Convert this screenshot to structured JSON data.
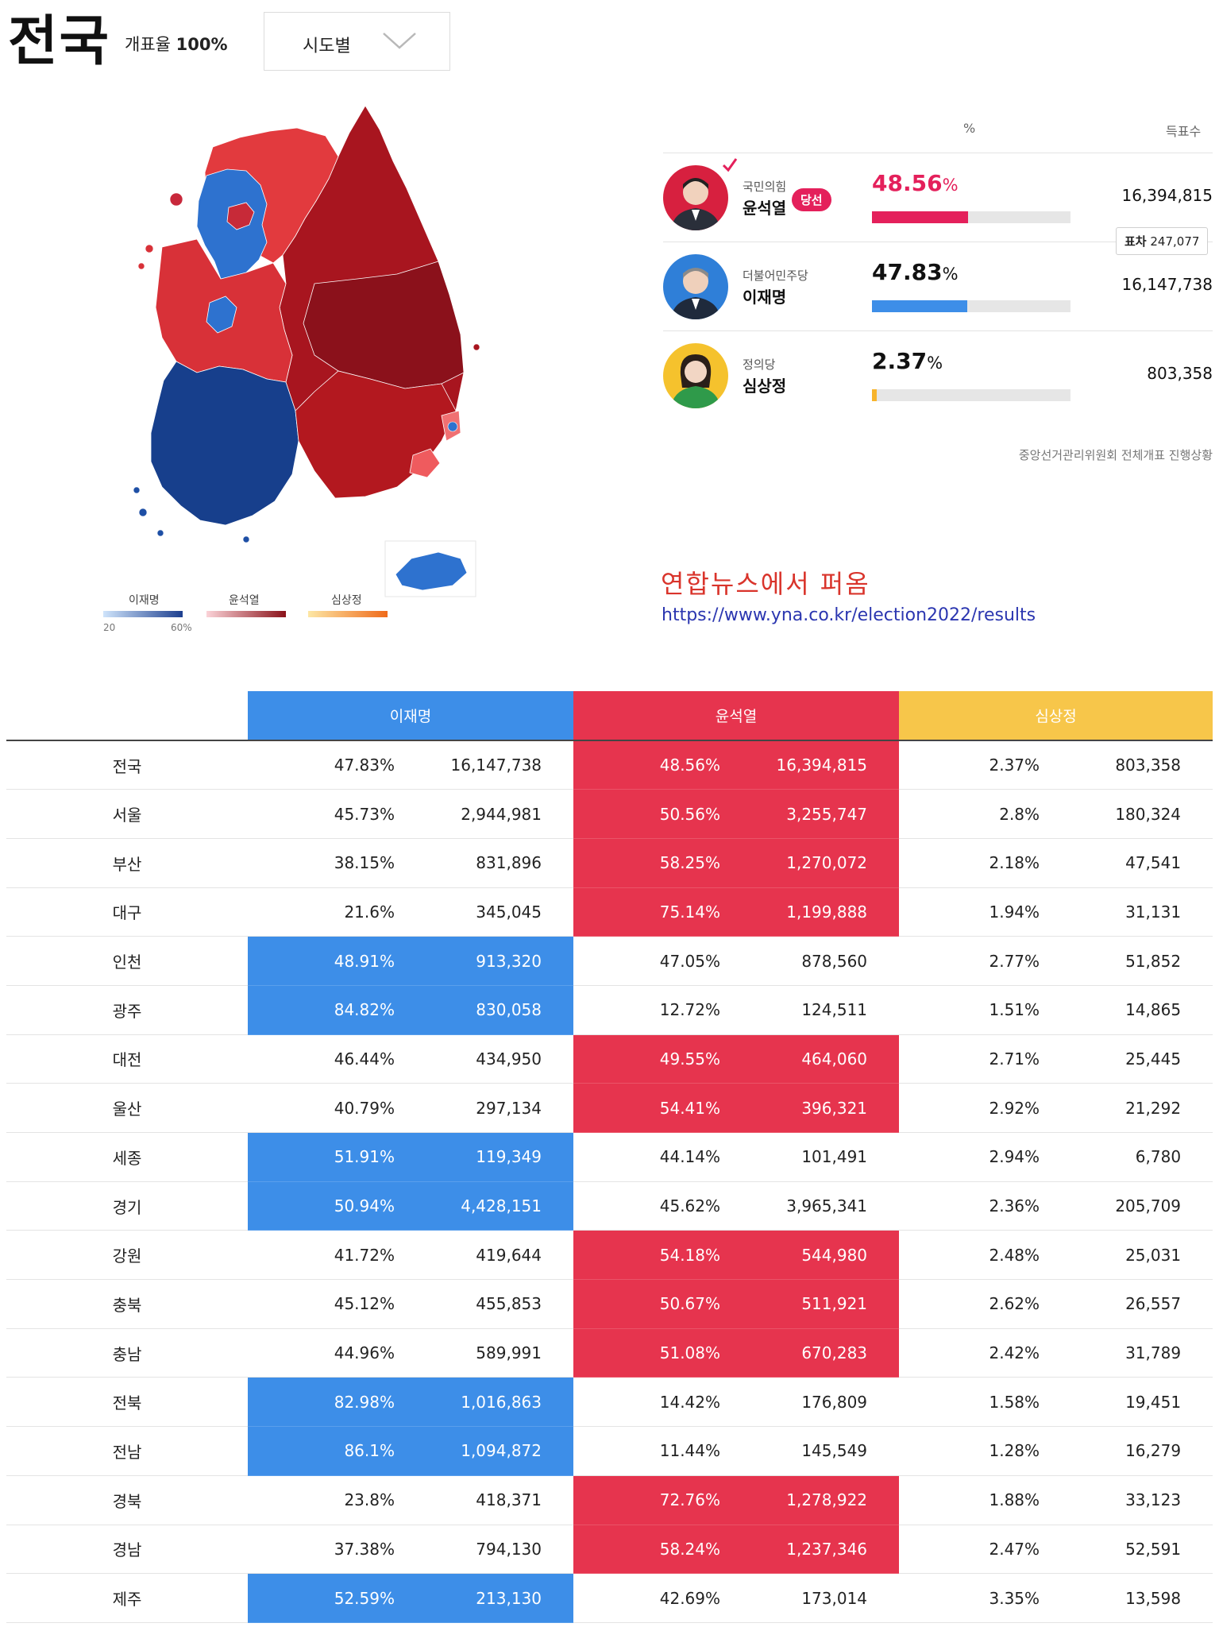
{
  "header": {
    "title": "전국",
    "rate_label": "개표율",
    "rate_value": "100%",
    "selector_label": "시도별"
  },
  "legend": {
    "items": [
      {
        "name": "이재명",
        "gradient": [
          "#cfe4fb",
          "#1d3f8f"
        ]
      },
      {
        "name": "윤석열",
        "gradient": [
          "#fbd3d8",
          "#8a1219"
        ]
      },
      {
        "name": "심상정",
        "gradient": [
          "#fde7a5",
          "#ef6a1a"
        ]
      }
    ],
    "min": "20",
    "max": "60%"
  },
  "results": {
    "col_pct": "%",
    "col_votes": "득표수",
    "candidates": [
      {
        "party": "국민의힘",
        "name": "윤석열",
        "pct": "48.56",
        "pct_unit": "%",
        "share": 48.56,
        "votes": "16,394,815",
        "badge": "당선",
        "color": "#e4205b",
        "winner": true
      },
      {
        "party": "더불어민주당",
        "name": "이재명",
        "pct": "47.83",
        "pct_unit": "%",
        "share": 47.83,
        "votes": "16,147,738",
        "color": "#3d8ee8",
        "winner": false
      },
      {
        "party": "정의당",
        "name": "심상정",
        "pct": "2.37",
        "pct_unit": "%",
        "share": 2.37,
        "votes": "803,358",
        "color": "#f7b42c",
        "winner": false
      }
    ],
    "margin_label": "표차",
    "margin_value": "247,077",
    "source": "중앙선거관리위원회 전체개표 진행상황"
  },
  "credit": {
    "text": "연합뉴스에서 퍼옴",
    "url": "https://www.yna.co.kr/election2022/results"
  },
  "table": {
    "headers": [
      "이재명",
      "윤석열",
      "심상정"
    ],
    "rows": [
      {
        "region": "전국",
        "lee_pct": "47.83%",
        "lee_votes": "16,147,738",
        "yoon_pct": "48.56%",
        "yoon_votes": "16,394,815",
        "sim_pct": "2.37%",
        "sim_votes": "803,358",
        "winner": "yoon"
      },
      {
        "region": "서울",
        "lee_pct": "45.73%",
        "lee_votes": "2,944,981",
        "yoon_pct": "50.56%",
        "yoon_votes": "3,255,747",
        "sim_pct": "2.8%",
        "sim_votes": "180,324",
        "winner": "yoon"
      },
      {
        "region": "부산",
        "lee_pct": "38.15%",
        "lee_votes": "831,896",
        "yoon_pct": "58.25%",
        "yoon_votes": "1,270,072",
        "sim_pct": "2.18%",
        "sim_votes": "47,541",
        "winner": "yoon"
      },
      {
        "region": "대구",
        "lee_pct": "21.6%",
        "lee_votes": "345,045",
        "yoon_pct": "75.14%",
        "yoon_votes": "1,199,888",
        "sim_pct": "1.94%",
        "sim_votes": "31,131",
        "winner": "yoon"
      },
      {
        "region": "인천",
        "lee_pct": "48.91%",
        "lee_votes": "913,320",
        "yoon_pct": "47.05%",
        "yoon_votes": "878,560",
        "sim_pct": "2.77%",
        "sim_votes": "51,852",
        "winner": "lee"
      },
      {
        "region": "광주",
        "lee_pct": "84.82%",
        "lee_votes": "830,058",
        "yoon_pct": "12.72%",
        "yoon_votes": "124,511",
        "sim_pct": "1.51%",
        "sim_votes": "14,865",
        "winner": "lee"
      },
      {
        "region": "대전",
        "lee_pct": "46.44%",
        "lee_votes": "434,950",
        "yoon_pct": "49.55%",
        "yoon_votes": "464,060",
        "sim_pct": "2.71%",
        "sim_votes": "25,445",
        "winner": "yoon"
      },
      {
        "region": "울산",
        "lee_pct": "40.79%",
        "lee_votes": "297,134",
        "yoon_pct": "54.41%",
        "yoon_votes": "396,321",
        "sim_pct": "2.92%",
        "sim_votes": "21,292",
        "winner": "yoon"
      },
      {
        "region": "세종",
        "lee_pct": "51.91%",
        "lee_votes": "119,349",
        "yoon_pct": "44.14%",
        "yoon_votes": "101,491",
        "sim_pct": "2.94%",
        "sim_votes": "6,780",
        "winner": "lee"
      },
      {
        "region": "경기",
        "lee_pct": "50.94%",
        "lee_votes": "4,428,151",
        "yoon_pct": "45.62%",
        "yoon_votes": "3,965,341",
        "sim_pct": "2.36%",
        "sim_votes": "205,709",
        "winner": "lee"
      },
      {
        "region": "강원",
        "lee_pct": "41.72%",
        "lee_votes": "419,644",
        "yoon_pct": "54.18%",
        "yoon_votes": "544,980",
        "sim_pct": "2.48%",
        "sim_votes": "25,031",
        "winner": "yoon"
      },
      {
        "region": "충북",
        "lee_pct": "45.12%",
        "lee_votes": "455,853",
        "yoon_pct": "50.67%",
        "yoon_votes": "511,921",
        "sim_pct": "2.62%",
        "sim_votes": "26,557",
        "winner": "yoon"
      },
      {
        "region": "충남",
        "lee_pct": "44.96%",
        "lee_votes": "589,991",
        "yoon_pct": "51.08%",
        "yoon_votes": "670,283",
        "sim_pct": "2.42%",
        "sim_votes": "31,789",
        "winner": "yoon"
      },
      {
        "region": "전북",
        "lee_pct": "82.98%",
        "lee_votes": "1,016,863",
        "yoon_pct": "14.42%",
        "yoon_votes": "176,809",
        "sim_pct": "1.58%",
        "sim_votes": "19,451",
        "winner": "lee"
      },
      {
        "region": "전남",
        "lee_pct": "86.1%",
        "lee_votes": "1,094,872",
        "yoon_pct": "11.44%",
        "yoon_votes": "145,549",
        "sim_pct": "1.28%",
        "sim_votes": "16,279",
        "winner": "lee"
      },
      {
        "region": "경북",
        "lee_pct": "23.8%",
        "lee_votes": "418,371",
        "yoon_pct": "72.76%",
        "yoon_votes": "1,278,922",
        "sim_pct": "1.88%",
        "sim_votes": "33,123",
        "winner": "yoon"
      },
      {
        "region": "경남",
        "lee_pct": "37.38%",
        "lee_votes": "794,130",
        "yoon_pct": "58.24%",
        "yoon_votes": "1,237,346",
        "sim_pct": "2.47%",
        "sim_votes": "52,591",
        "winner": "yoon"
      },
      {
        "region": "제주",
        "lee_pct": "52.59%",
        "lee_votes": "213,130",
        "yoon_pct": "42.69%",
        "yoon_votes": "173,014",
        "sim_pct": "3.35%",
        "sim_votes": "13,598",
        "winner": "lee"
      }
    ]
  }
}
